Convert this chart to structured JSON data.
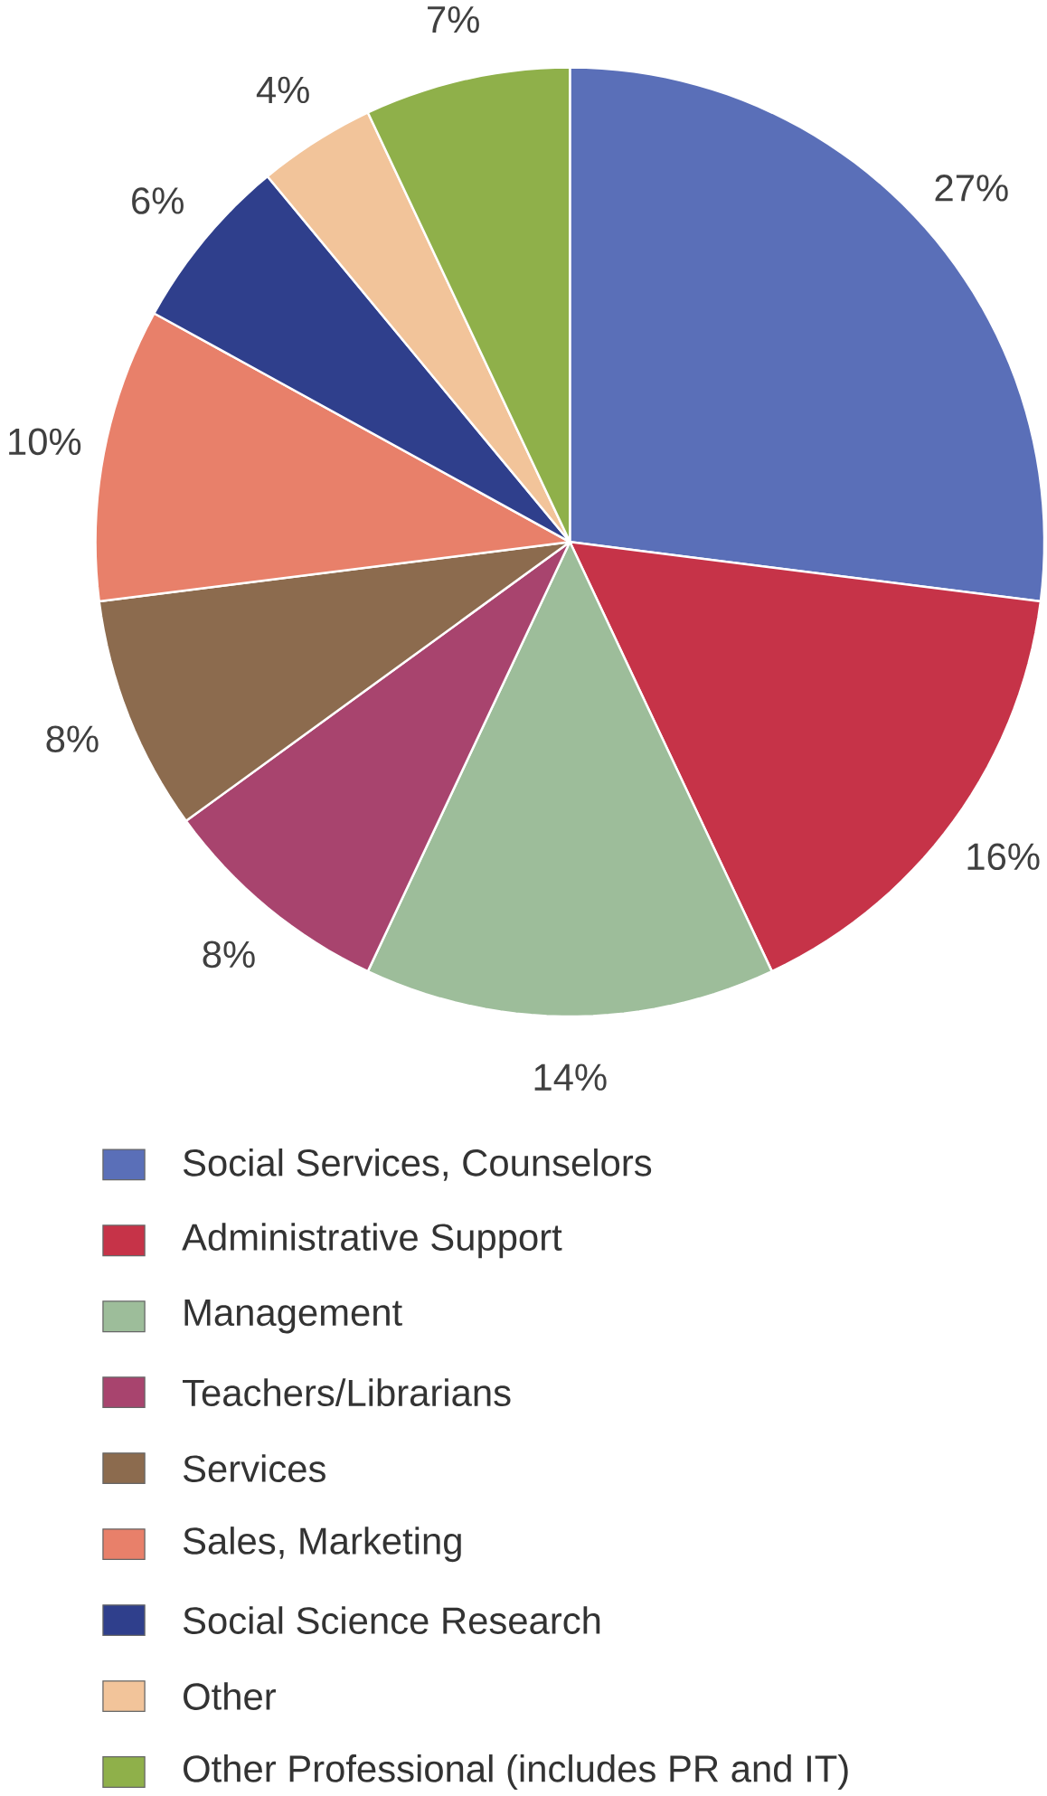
{
  "chart_data": {
    "type": "pie",
    "categories": [
      "Social Services, Counselors",
      "Administrative Support",
      "Management",
      "Teachers/Librarians",
      "Services",
      "Sales, Marketing",
      "Social Science Research",
      "Other",
      "Other Professional (includes PR and IT)"
    ],
    "values": [
      27,
      16,
      14,
      8,
      8,
      10,
      6,
      4,
      7
    ],
    "value_labels": [
      "27%",
      "16%",
      "14%",
      "8%",
      "8%",
      "10%",
      "6%",
      "4%",
      "7%"
    ],
    "colors": [
      "#5a6fb8",
      "#c63348",
      "#9dbd9a",
      "#a8446e",
      "#8c6b4e",
      "#e8806a",
      "#2f3f8c",
      "#f2c49a",
      "#8fb04a"
    ],
    "legend": "bottom"
  }
}
